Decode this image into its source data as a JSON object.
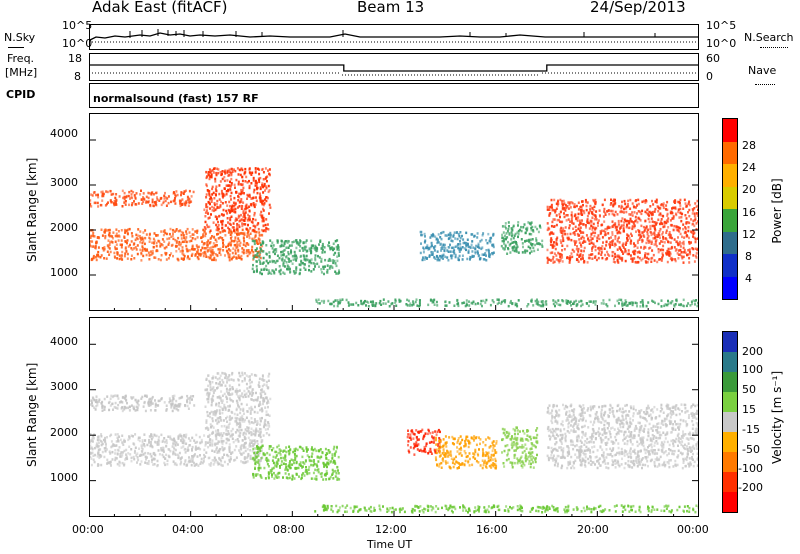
{
  "header": {
    "station": "Adak East (fitACF)",
    "beam": "Beam 13",
    "date": "24/Sep/2013"
  },
  "strips": {
    "nsky_label": "N.Sky",
    "nsky_ticks": [
      "10^5",
      "10^0"
    ],
    "nsearch_label": "N.Search",
    "nsearch_ticks": [
      "10^5",
      "10^0"
    ],
    "freq_label": "Freq.",
    "freq_unit": "[MHz]",
    "freq_ticks": [
      "18",
      "8"
    ],
    "nave_label": "Nave",
    "nave_ticks": [
      "60",
      "0"
    ],
    "cpid_label": "CPID",
    "cpid_text": "normalsound (fast) 157 RF",
    "freq_schedule": [
      {
        "start": 0.0,
        "end": 10.0,
        "level": "high"
      },
      {
        "start": 10.0,
        "end": 18.0,
        "level": "low"
      },
      {
        "start": 18.0,
        "end": 24.0,
        "level": "high"
      }
    ]
  },
  "chart_data": [
    {
      "type": "heatmap",
      "name": "power-panel",
      "xlabel": "",
      "ylabel": "Slant Range [km]",
      "xlim": [
        0,
        24
      ],
      "ylim": [
        200,
        4600
      ],
      "yticks": [
        "4000",
        "3000",
        "2000",
        "1000"
      ],
      "colorbar": {
        "label": "Power [dB]",
        "ticks": [
          "28",
          "24",
          "20",
          "16",
          "12",
          "8",
          "4"
        ],
        "colors": [
          "#ff0000",
          "#ff6a00",
          "#ffb000",
          "#d9cc00",
          "#3aa53a",
          "#2f6d8c",
          "#1030c8",
          "#0000ff"
        ]
      },
      "echoes": [
        {
          "t0": 0.0,
          "t1": 4.1,
          "r0": 2550,
          "r1": 2900,
          "color": "#ff4a10"
        },
        {
          "t0": 0.0,
          "t1": 6.8,
          "r0": 1350,
          "r1": 2050,
          "color": "#ff5a10"
        },
        {
          "t0": 4.5,
          "t1": 7.1,
          "r0": 2000,
          "r1": 3400,
          "color": "#ff3000"
        },
        {
          "t0": 6.4,
          "t1": 9.8,
          "r0": 1050,
          "r1": 1800,
          "color": "#3aa060"
        },
        {
          "t0": 13.0,
          "t1": 15.9,
          "r0": 1350,
          "r1": 2000,
          "color": "#3a8fb0"
        },
        {
          "t0": 16.2,
          "t1": 17.8,
          "r0": 1500,
          "r1": 2200,
          "color": "#3aa060"
        },
        {
          "t0": 18.0,
          "t1": 24.0,
          "r0": 1300,
          "r1": 2700,
          "color": "#ff3a10"
        },
        {
          "t0": 8.8,
          "t1": 24.0,
          "r0": 330,
          "r1": 480,
          "color": "#3aa060"
        }
      ]
    },
    {
      "type": "heatmap",
      "name": "velocity-panel",
      "xlabel": "Time UT",
      "ylabel": "Slant Range [km]",
      "xlim": [
        0,
        24
      ],
      "ylim": [
        200,
        4600
      ],
      "xticks": [
        "00:00",
        "04:00",
        "08:00",
        "12:00",
        "16:00",
        "20:00",
        "00:00"
      ],
      "yticks": [
        "4000",
        "3000",
        "2000",
        "1000"
      ],
      "colorbar": {
        "label": "Velocity [m s⁻¹]",
        "ticks": [
          "200",
          "100",
          "50",
          "15",
          "-15",
          "-50",
          "-100",
          "-200"
        ],
        "colors": [
          "#1a2fb8",
          "#2a7a8a",
          "#3a9a3a",
          "#7ad040",
          "#c8c8c8",
          "#ffb000",
          "#ff7a00",
          "#ff3000",
          "#ff0000"
        ]
      },
      "echoes": [
        {
          "t0": 0.0,
          "t1": 4.1,
          "r0": 2550,
          "r1": 2900,
          "color": "#c4c4c4"
        },
        {
          "t0": 0.0,
          "t1": 6.8,
          "r0": 1350,
          "r1": 2050,
          "color": "#c8c8c8"
        },
        {
          "t0": 4.5,
          "t1": 7.1,
          "r0": 2000,
          "r1": 3400,
          "color": "#c8c8c8"
        },
        {
          "t0": 6.4,
          "t1": 9.8,
          "r0": 1050,
          "r1": 1800,
          "color": "#6ac834"
        },
        {
          "t0": 12.5,
          "t1": 13.8,
          "r0": 1600,
          "r1": 2150,
          "color": "#ff2000"
        },
        {
          "t0": 13.6,
          "t1": 16.0,
          "r0": 1300,
          "r1": 2000,
          "color": "#ffa000"
        },
        {
          "t0": 16.2,
          "t1": 17.6,
          "r0": 1300,
          "r1": 2200,
          "color": "#8ad050"
        },
        {
          "t0": 18.0,
          "t1": 24.0,
          "r0": 1300,
          "r1": 2700,
          "color": "#c8c8c8"
        },
        {
          "t0": 8.8,
          "t1": 24.0,
          "r0": 330,
          "r1": 480,
          "color": "#6ac834"
        }
      ]
    }
  ]
}
